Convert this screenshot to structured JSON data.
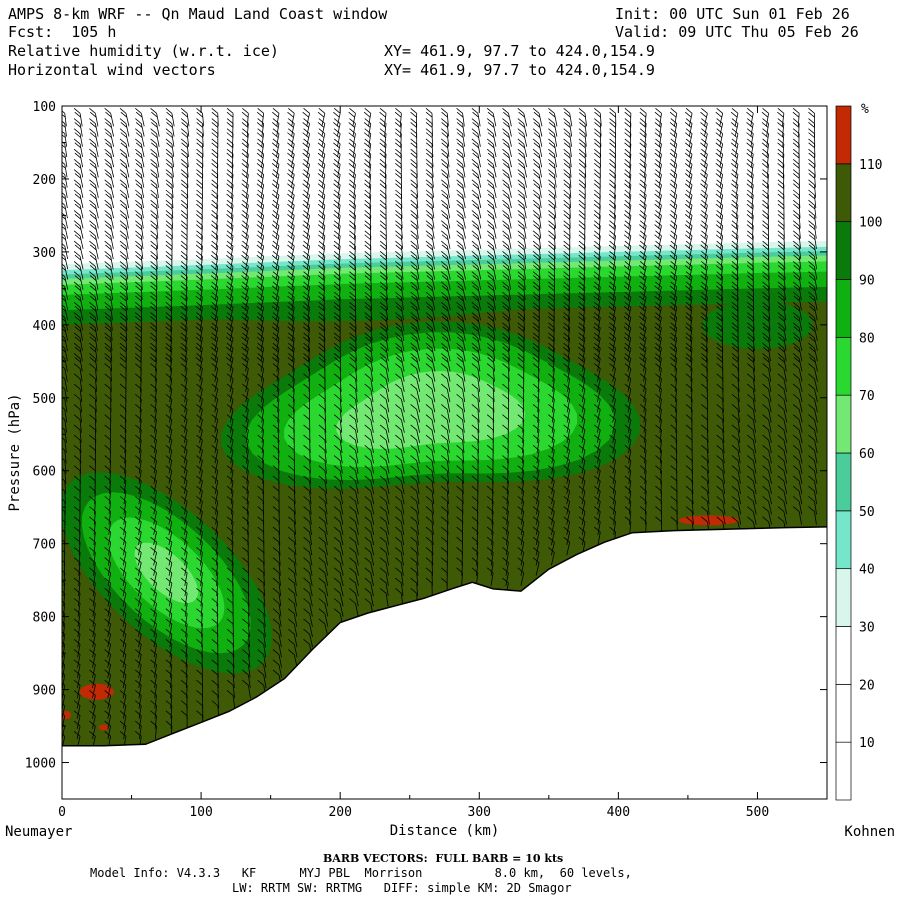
{
  "header": {
    "title": "AMPS 8-km WRF -- Qn Maud Land Coast window",
    "init": "Init: 00 UTC Sun 01 Feb 26",
    "fcst": "Fcst:  105 h",
    "valid": "Valid: 09 UTC Thu 05 Feb 26",
    "field1": "Relative humidity (w.r.t. ice)",
    "field1_xy": "XY= 461.9, 97.7 to 424.0,154.9",
    "field2": "Horizontal wind vectors",
    "field2_xy": "XY= 461.9, 97.7 to 424.0,154.9"
  },
  "footer": {
    "barb_note": "BARB VECTORS:  FULL BARB = 10 kts",
    "model_line1": "Model Info: V4.3.3   KF      MYJ PBL  Morrison          8.0 km,  60 levels,",
    "model_line2": "LW: RRTM SW: RRTMG   DIFF: simple KM: 2D Smagor"
  },
  "colors": {
    "lt10": "#ffffff",
    "c30_40": "#d8f6ec",
    "c40_50": "#76e6cb",
    "c50_60": "#4acd9a",
    "c60_70": "#73e872",
    "c70_80": "#2ad830",
    "c80_90": "#10b010",
    "c90_100": "#0a7a0a",
    "c100_110": "#3e5a06",
    "gt110": "#c22a05",
    "terrain_line": "#000000"
  },
  "chart_data": {
    "type": "cross-section",
    "xlabel": "Distance (km)",
    "ylabel": "Pressure (hPa)",
    "xlim": [
      0,
      550
    ],
    "ylim": [
      1050,
      100
    ],
    "x_ticks": [
      0,
      100,
      200,
      300,
      400,
      500
    ],
    "y_ticks": [
      100,
      200,
      300,
      400,
      500,
      600,
      700,
      800,
      900,
      1000
    ],
    "left_station": "Neumayer",
    "right_station": "Kohnen",
    "colorbar": {
      "unit": "%",
      "levels": [
        10,
        20,
        30,
        40,
        50,
        60,
        70,
        80,
        90,
        100,
        110
      ],
      "colors": [
        "#ffffff",
        "#ffffff",
        "#ffffff",
        "#d8f6ec",
        "#76e6cb",
        "#4acd9a",
        "#73e872",
        "#2ad830",
        "#10b010",
        "#0a7a0a",
        "#3e5a06",
        "#c22a05"
      ]
    },
    "terrain_surface": {
      "x": [
        0,
        30,
        60,
        80,
        100,
        120,
        140,
        160,
        180,
        200,
        220,
        240,
        260,
        280,
        295,
        310,
        330,
        350,
        370,
        390,
        410,
        440,
        480,
        520,
        550
      ],
      "p": [
        977,
        977,
        975,
        960,
        945,
        930,
        910,
        885,
        845,
        808,
        795,
        785,
        775,
        762,
        753,
        762,
        765,
        735,
        715,
        698,
        685,
        682,
        680,
        678,
        677
      ]
    },
    "moist_layer_top_hPa": {
      "x": [
        0,
        100,
        200,
        300,
        400,
        500,
        550
      ],
      "p": [
        325,
        318,
        310,
        305,
        300,
        295,
        293
      ]
    },
    "wind_barbs": "10 kt full barb, vertical profiles at ~11 km spacing"
  }
}
